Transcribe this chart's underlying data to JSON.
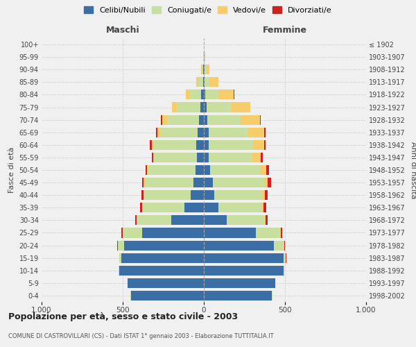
{
  "age_groups": [
    "0-4",
    "5-9",
    "10-14",
    "15-19",
    "20-24",
    "25-29",
    "30-34",
    "35-39",
    "40-44",
    "45-49",
    "50-54",
    "55-59",
    "60-64",
    "65-69",
    "70-74",
    "75-79",
    "80-84",
    "85-89",
    "90-94",
    "95-99",
    "100+"
  ],
  "birth_years": [
    "1998-2002",
    "1993-1997",
    "1988-1992",
    "1983-1987",
    "1978-1982",
    "1973-1977",
    "1968-1972",
    "1963-1967",
    "1958-1962",
    "1953-1957",
    "1948-1952",
    "1943-1947",
    "1938-1942",
    "1933-1937",
    "1928-1932",
    "1923-1927",
    "1918-1922",
    "1913-1917",
    "1908-1912",
    "1903-1907",
    "≤ 1902"
  ],
  "maschi": {
    "celibe": [
      450,
      470,
      520,
      510,
      490,
      380,
      200,
      120,
      80,
      65,
      50,
      42,
      45,
      40,
      30,
      20,
      15,
      5,
      3,
      2,
      0
    ],
    "coniugato": [
      1,
      2,
      5,
      10,
      40,
      120,
      215,
      260,
      290,
      300,
      295,
      265,
      265,
      230,
      195,
      145,
      75,
      30,
      10,
      3,
      2
    ],
    "vedovo": [
      0,
      0,
      0,
      0,
      1,
      2,
      1,
      2,
      3,
      5,
      5,
      5,
      10,
      15,
      30,
      30,
      20,
      10,
      3,
      1,
      0
    ],
    "divorziato": [
      0,
      0,
      0,
      1,
      2,
      5,
      8,
      10,
      12,
      12,
      10,
      10,
      12,
      12,
      10,
      3,
      2,
      1,
      0,
      0,
      0
    ]
  },
  "femmine": {
    "nubile": [
      420,
      440,
      490,
      490,
      430,
      320,
      140,
      90,
      65,
      55,
      40,
      30,
      30,
      30,
      20,
      15,
      10,
      5,
      3,
      2,
      0
    ],
    "coniugata": [
      1,
      2,
      5,
      15,
      65,
      150,
      235,
      270,
      295,
      315,
      305,
      270,
      275,
      245,
      205,
      155,
      80,
      30,
      12,
      3,
      1
    ],
    "vedova": [
      0,
      0,
      0,
      1,
      2,
      3,
      5,
      8,
      15,
      25,
      40,
      50,
      65,
      95,
      120,
      115,
      95,
      55,
      20,
      5,
      1
    ],
    "divorziata": [
      0,
      0,
      0,
      1,
      3,
      8,
      12,
      15,
      18,
      20,
      18,
      12,
      12,
      12,
      5,
      3,
      2,
      1,
      0,
      0,
      0
    ]
  },
  "colors": {
    "celibe": "#3A6EA5",
    "coniugato": "#C8DFA0",
    "vedovo": "#F7CC6A",
    "divorziato": "#CC2222"
  },
  "title": "Popolazione per età, sesso e stato civile - 2003",
  "subtitle": "COMUNE DI CASTROVILLARI (CS) - Dati ISTAT 1° gennaio 2003 - Elaborazione TUTTITALIA.IT",
  "ylabel_left": "Fasce di età",
  "ylabel_right": "Anni di nascita",
  "xlabel_left": "Maschi",
  "xlabel_right": "Femmine",
  "xlim": 1000,
  "legend_labels": [
    "Celibi/Nubili",
    "Coniugati/e",
    "Vedovi/e",
    "Divorziati/e"
  ],
  "bg_color": "#f0f0f0"
}
